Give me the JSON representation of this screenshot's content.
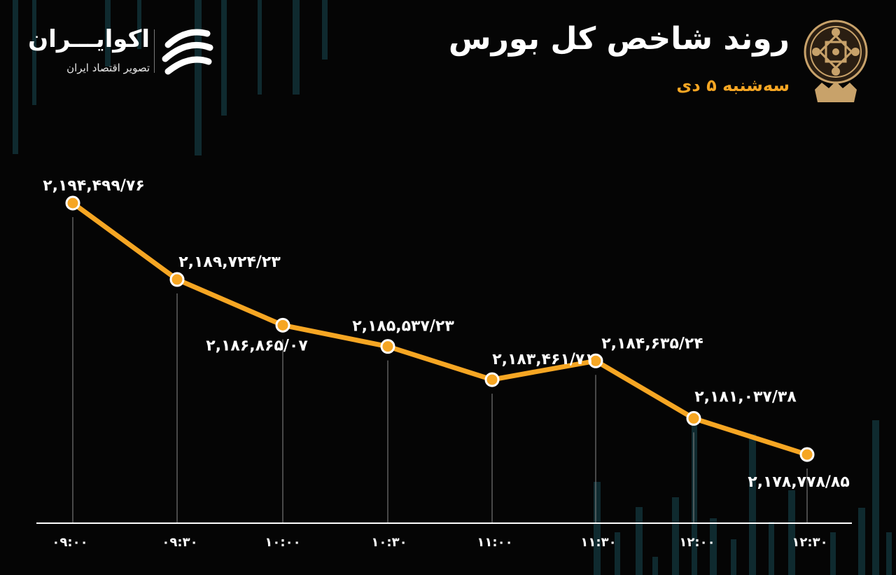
{
  "header": {
    "title": "روند شاخص کل بورس",
    "date": "سه‌شنبه ۵ دی"
  },
  "brand": {
    "name": "اکوایـــران",
    "tagline": "تصویر اقتصاد ایران"
  },
  "colors": {
    "background": "#050505",
    "line": "#f6a623",
    "text": "#ffffff",
    "grid": "#8a8a8a"
  },
  "chart_data": {
    "type": "line",
    "x": [
      "۰۹:۰۰",
      "۰۹:۳۰",
      "۱۰:۰۰",
      "۱۰:۳۰",
      "۱۱:۰۰",
      "۱۱:۳۰",
      "۱۲:۰۰",
      "۱۲:۳۰"
    ],
    "values": [
      2194499.76,
      2189724.23,
      2186865.07,
      2185537.23,
      2183461.71,
      2184635.24,
      2181037.38,
      2178778.85
    ],
    "labels": [
      "۲,۱۹۴,۴۹۹/۷۶",
      "۲,۱۸۹,۷۲۴/۲۳",
      "۲,۱۸۶,۸۶۵/۰۷",
      "۲,۱۸۵,۵۳۷/۲۳",
      "۲,۱۸۳,۴۶۱/۷۱",
      "۲,۱۸۴,۶۳۵/۲۴",
      "۲,۱۸۱,۰۳۷/۳۸",
      "۲,۱۷۸,۷۷۸/۸۵"
    ],
    "grid": false,
    "legend": "none"
  }
}
